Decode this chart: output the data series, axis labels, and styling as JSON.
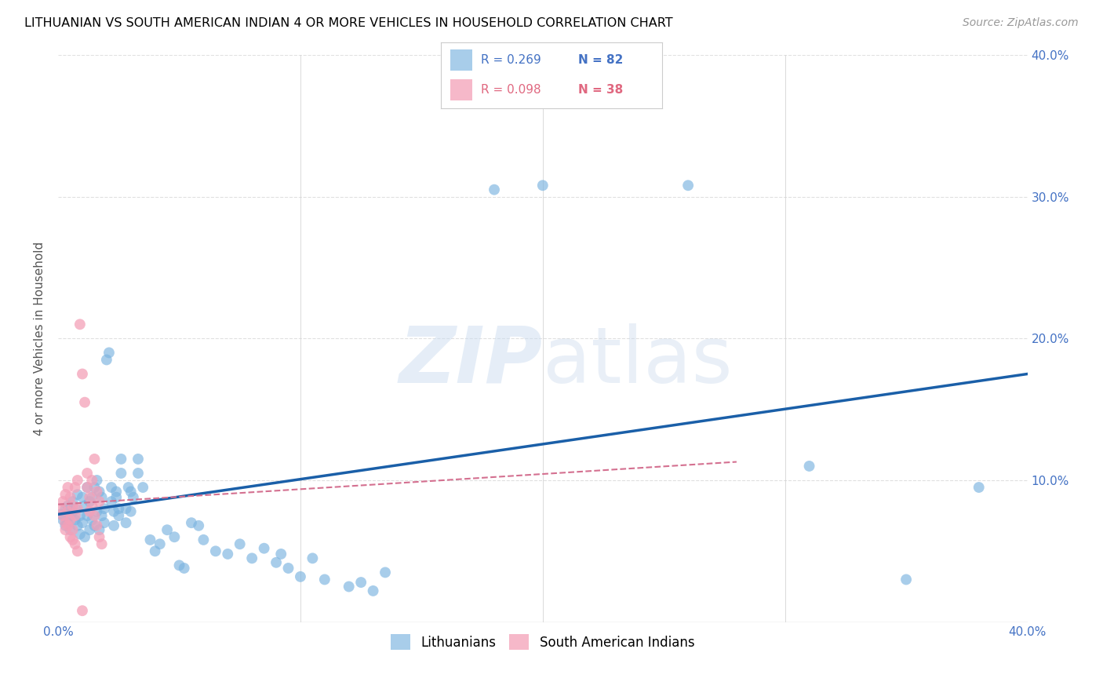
{
  "title": "LITHUANIAN VS SOUTH AMERICAN INDIAN 4 OR MORE VEHICLES IN HOUSEHOLD CORRELATION CHART",
  "source": "Source: ZipAtlas.com",
  "ylabel": "4 or more Vehicles in Household",
  "watermark": "ZIPatlas",
  "xlim": [
    0.0,
    0.4
  ],
  "ylim": [
    0.0,
    0.4
  ],
  "blue_line_x": [
    0.0,
    0.4
  ],
  "blue_line_y": [
    0.076,
    0.175
  ],
  "pink_line_x": [
    0.0,
    0.28
  ],
  "pink_line_y": [
    0.083,
    0.113
  ],
  "background_color": "#ffffff",
  "grid_color": "#e0e0e0",
  "blue_color": "#7ab3e0",
  "pink_color": "#f4a0b8",
  "blue_scatter": [
    [
      0.001,
      0.076
    ],
    [
      0.002,
      0.072
    ],
    [
      0.003,
      0.08
    ],
    [
      0.003,
      0.068
    ],
    [
      0.004,
      0.082
    ],
    [
      0.004,
      0.07
    ],
    [
      0.005,
      0.075
    ],
    [
      0.005,
      0.065
    ],
    [
      0.006,
      0.085
    ],
    [
      0.006,
      0.078
    ],
    [
      0.007,
      0.08
    ],
    [
      0.007,
      0.072
    ],
    [
      0.008,
      0.09
    ],
    [
      0.008,
      0.068
    ],
    [
      0.009,
      0.075
    ],
    [
      0.009,
      0.062
    ],
    [
      0.01,
      0.088
    ],
    [
      0.01,
      0.07
    ],
    [
      0.011,
      0.082
    ],
    [
      0.011,
      0.06
    ],
    [
      0.012,
      0.095
    ],
    [
      0.012,
      0.075
    ],
    [
      0.013,
      0.085
    ],
    [
      0.013,
      0.065
    ],
    [
      0.014,
      0.072
    ],
    [
      0.014,
      0.088
    ],
    [
      0.015,
      0.095
    ],
    [
      0.015,
      0.068
    ],
    [
      0.016,
      0.1
    ],
    [
      0.016,
      0.078
    ],
    [
      0.017,
      0.065
    ],
    [
      0.017,
      0.092
    ],
    [
      0.018,
      0.088
    ],
    [
      0.018,
      0.075
    ],
    [
      0.019,
      0.08
    ],
    [
      0.019,
      0.07
    ],
    [
      0.02,
      0.185
    ],
    [
      0.021,
      0.19
    ],
    [
      0.022,
      0.085
    ],
    [
      0.022,
      0.095
    ],
    [
      0.023,
      0.078
    ],
    [
      0.023,
      0.068
    ],
    [
      0.024,
      0.092
    ],
    [
      0.024,
      0.088
    ],
    [
      0.025,
      0.075
    ],
    [
      0.025,
      0.08
    ],
    [
      0.026,
      0.105
    ],
    [
      0.026,
      0.115
    ],
    [
      0.028,
      0.07
    ],
    [
      0.028,
      0.08
    ],
    [
      0.029,
      0.095
    ],
    [
      0.03,
      0.092
    ],
    [
      0.03,
      0.078
    ],
    [
      0.031,
      0.088
    ],
    [
      0.033,
      0.105
    ],
    [
      0.033,
      0.115
    ],
    [
      0.035,
      0.095
    ],
    [
      0.038,
      0.058
    ],
    [
      0.04,
      0.05
    ],
    [
      0.042,
      0.055
    ],
    [
      0.045,
      0.065
    ],
    [
      0.048,
      0.06
    ],
    [
      0.05,
      0.04
    ],
    [
      0.052,
      0.038
    ],
    [
      0.055,
      0.07
    ],
    [
      0.058,
      0.068
    ],
    [
      0.06,
      0.058
    ],
    [
      0.065,
      0.05
    ],
    [
      0.07,
      0.048
    ],
    [
      0.075,
      0.055
    ],
    [
      0.08,
      0.045
    ],
    [
      0.085,
      0.052
    ],
    [
      0.09,
      0.042
    ],
    [
      0.092,
      0.048
    ],
    [
      0.095,
      0.038
    ],
    [
      0.1,
      0.032
    ],
    [
      0.105,
      0.045
    ],
    [
      0.11,
      0.03
    ],
    [
      0.12,
      0.025
    ],
    [
      0.125,
      0.028
    ],
    [
      0.13,
      0.022
    ],
    [
      0.135,
      0.035
    ],
    [
      0.18,
      0.305
    ],
    [
      0.2,
      0.308
    ],
    [
      0.26,
      0.308
    ],
    [
      0.31,
      0.11
    ],
    [
      0.35,
      0.03
    ],
    [
      0.38,
      0.095
    ]
  ],
  "pink_scatter": [
    [
      0.001,
      0.08
    ],
    [
      0.002,
      0.085
    ],
    [
      0.002,
      0.075
    ],
    [
      0.003,
      0.09
    ],
    [
      0.003,
      0.07
    ],
    [
      0.003,
      0.065
    ],
    [
      0.004,
      0.095
    ],
    [
      0.004,
      0.078
    ],
    [
      0.004,
      0.068
    ],
    [
      0.005,
      0.088
    ],
    [
      0.005,
      0.072
    ],
    [
      0.005,
      0.06
    ],
    [
      0.006,
      0.082
    ],
    [
      0.006,
      0.065
    ],
    [
      0.006,
      0.058
    ],
    [
      0.007,
      0.095
    ],
    [
      0.007,
      0.075
    ],
    [
      0.007,
      0.055
    ],
    [
      0.008,
      0.1
    ],
    [
      0.008,
      0.08
    ],
    [
      0.008,
      0.05
    ],
    [
      0.009,
      0.21
    ],
    [
      0.01,
      0.175
    ],
    [
      0.011,
      0.155
    ],
    [
      0.012,
      0.105
    ],
    [
      0.012,
      0.095
    ],
    [
      0.013,
      0.088
    ],
    [
      0.013,
      0.078
    ],
    [
      0.014,
      0.1
    ],
    [
      0.014,
      0.082
    ],
    [
      0.015,
      0.115
    ],
    [
      0.015,
      0.075
    ],
    [
      0.016,
      0.092
    ],
    [
      0.016,
      0.068
    ],
    [
      0.017,
      0.085
    ],
    [
      0.017,
      0.06
    ],
    [
      0.018,
      0.055
    ],
    [
      0.01,
      0.008
    ]
  ]
}
